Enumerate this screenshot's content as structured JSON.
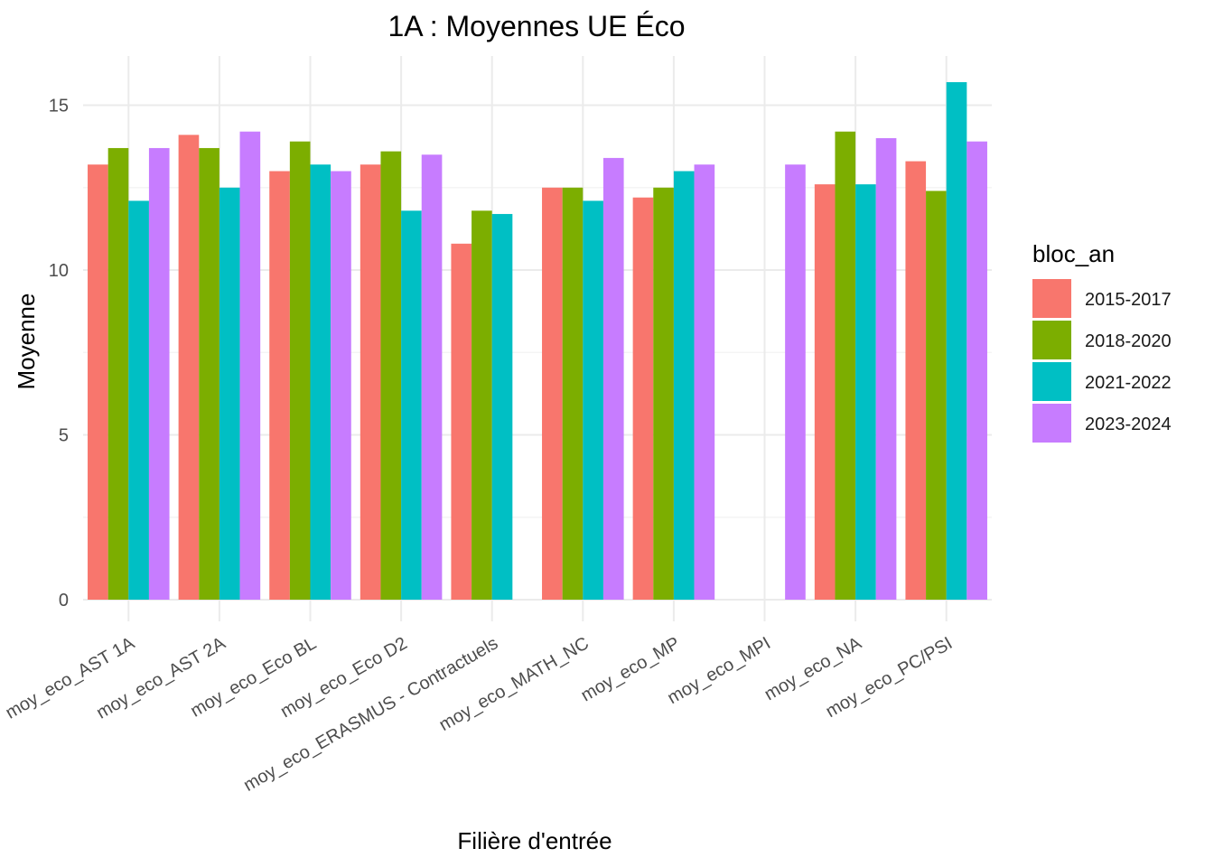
{
  "chart_data": {
    "type": "bar",
    "title": "1A : Moyennes UE Éco",
    "xlabel": "Filière d'entrée",
    "ylabel": "Moyenne",
    "ylim": [
      0,
      16.2
    ],
    "yticks": [
      0,
      5,
      10,
      15
    ],
    "grid": true,
    "legend": {
      "title": "bloc_an",
      "placement": "right"
    },
    "categories": [
      "moy_eco_AST 1A",
      "moy_eco_AST 2A",
      "moy_eco_Eco BL",
      "moy_eco_Eco D2",
      "moy_eco_ERASMUS - Contractuels",
      "moy_eco_MATH_NC",
      "moy_eco_MP",
      "moy_eco_MPI",
      "moy_eco_NA",
      "moy_eco_PC/PSI"
    ],
    "series": [
      {
        "name": "2015-2017",
        "color": "#F8766D",
        "values": [
          13.2,
          14.1,
          13.0,
          13.2,
          10.8,
          12.5,
          12.2,
          null,
          12.6,
          13.3
        ]
      },
      {
        "name": "2018-2020",
        "color": "#7CAE00",
        "values": [
          13.7,
          13.7,
          13.9,
          13.6,
          11.8,
          12.5,
          12.5,
          null,
          14.2,
          12.4
        ]
      },
      {
        "name": "2021-2022",
        "color": "#00BFC4",
        "values": [
          12.1,
          12.5,
          13.2,
          11.8,
          11.7,
          12.1,
          13.0,
          null,
          12.6,
          15.7
        ]
      },
      {
        "name": "2023-2024",
        "color": "#C77CFF",
        "values": [
          13.7,
          14.2,
          13.0,
          13.5,
          null,
          13.4,
          13.2,
          13.2,
          14.0,
          13.9
        ]
      }
    ]
  }
}
